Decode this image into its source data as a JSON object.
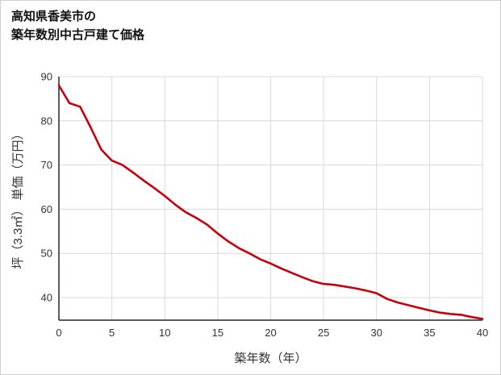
{
  "header": {
    "title_line1": "高知県香美市の",
    "title_line2": "築年数別中古戸建て価格"
  },
  "chart_data": {
    "type": "line",
    "title": "高知県香美市の築年数別中古戸建て価格",
    "xlabel": "築年数（年）",
    "ylabel": "坪（3.3㎡） 単価（万円）",
    "x": [
      0,
      1,
      2,
      3,
      4,
      5,
      6,
      7,
      8,
      9,
      10,
      11,
      12,
      13,
      14,
      15,
      16,
      17,
      18,
      19,
      20,
      21,
      22,
      23,
      24,
      25,
      26,
      27,
      28,
      29,
      30,
      31,
      32,
      33,
      34,
      35,
      36,
      37,
      38,
      39,
      40
    ],
    "y": [
      88,
      84,
      83.2,
      78.5,
      73.5,
      71,
      70,
      68.3,
      66.5,
      64.8,
      63,
      61,
      59.3,
      58,
      56.5,
      54.5,
      52.7,
      51.2,
      50,
      48.7,
      47.7,
      46.6,
      45.6,
      44.6,
      43.7,
      43.1,
      42.9,
      42.5,
      42.1,
      41.6,
      41,
      39.7,
      38.9,
      38.3,
      37.7,
      37.1,
      36.6,
      36.3,
      36.1,
      35.6,
      35.2
    ],
    "xlim": [
      0,
      40
    ],
    "ylim": [
      34.9,
      90
    ],
    "xticks": [
      0,
      5,
      10,
      15,
      20,
      25,
      30,
      35,
      40
    ],
    "yticks": [
      40,
      50,
      60,
      70,
      80,
      90
    ],
    "grid": true,
    "legend": "none",
    "line_color": "#c7000b",
    "grid_color": "#d9d9d9",
    "axis_color": "#262626",
    "tick_label_color": "#333333"
  }
}
